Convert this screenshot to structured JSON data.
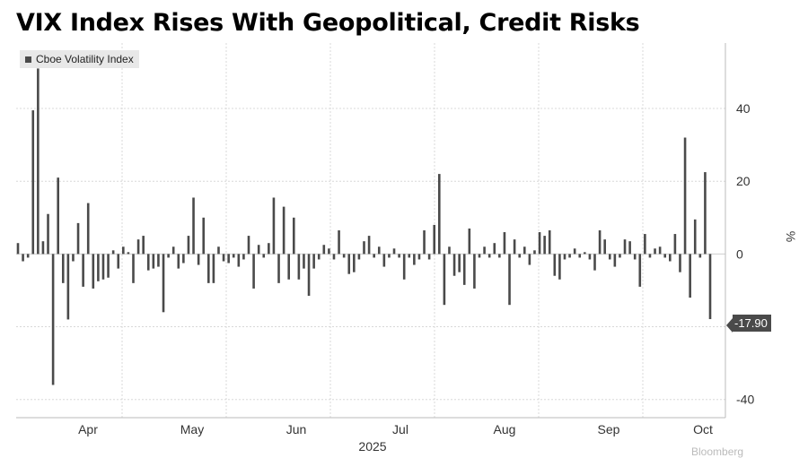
{
  "title": "VIX Index Rises With Geopolitical, Credit Risks",
  "legend": {
    "label": "Cboe Volatility Index"
  },
  "last_value_label": "-17.90",
  "footer_credit": "Bloomberg",
  "colors": {
    "bar": "#4a4a4a",
    "grid": "#d8d8d8",
    "zero_line": "#cfcfcf",
    "axis_text": "#333333"
  },
  "chart_data": {
    "type": "bar",
    "title": "VIX Index Rises With Geopolitical, Credit Risks",
    "ylabel": "%",
    "ylim": [
      -45,
      58
    ],
    "yticks": [
      40,
      20,
      0,
      -20,
      -40
    ],
    "x_axis_months": [
      "Apr",
      "May",
      "Jun",
      "Jul",
      "Aug",
      "Sep",
      "Oct"
    ],
    "x_axis_year": "2025",
    "grid": true,
    "legend_position": "top-left",
    "series": [
      {
        "name": "Cboe Volatility Index",
        "values": [
          3.0,
          -2.0,
          -1.0,
          39.5,
          51.0,
          3.5,
          11.0,
          -36.0,
          21.0,
          -8.0,
          -18.0,
          -2.0,
          8.5,
          -9.0,
          14.0,
          -9.5,
          -7.5,
          -7.0,
          -6.5,
          1.0,
          -4.0,
          2.0,
          0.5,
          -8.0,
          4.0,
          5.0,
          -4.5,
          -4.0,
          -3.5,
          -16.0,
          -1.0,
          2.0,
          -4.0,
          -2.5,
          5.0,
          15.5,
          -3.0,
          10.0,
          -8.0,
          -8.0,
          2.0,
          -2.0,
          -2.5,
          -1.0,
          -3.5,
          -1.5,
          5.0,
          -9.5,
          2.5,
          -1.0,
          3.0,
          15.5,
          -8.0,
          13.0,
          -7.0,
          10.0,
          -7.0,
          -4.0,
          -11.5,
          -4.0,
          -1.5,
          2.5,
          1.5,
          -1.5,
          6.5,
          -1.0,
          -5.5,
          -5.0,
          -1.5,
          3.5,
          5.0,
          -1.0,
          2.0,
          -3.5,
          -1.0,
          1.5,
          -1.0,
          -7.0,
          -1.0,
          -3.0,
          -1.5,
          6.5,
          -1.5,
          8.0,
          22.0,
          -14.0,
          2.0,
          -6.0,
          -5.0,
          -8.5,
          7.0,
          -9.5,
          -1.0,
          2.0,
          -1.0,
          3.0,
          -1.0,
          6.0,
          -14.0,
          4.0,
          -1.0,
          2.0,
          -3.0,
          1.0,
          6.0,
          5.0,
          6.5,
          -6.0,
          -7.0,
          -1.5,
          -1.0,
          1.5,
          -1.0,
          0.5,
          -1.5,
          -4.5,
          6.5,
          4.0,
          -1.5,
          -3.5,
          -1.0,
          4.0,
          3.5,
          -1.5,
          -9.0,
          5.5,
          -1.0,
          1.5,
          2.0,
          -1.0,
          -2.0,
          5.5,
          -5.0,
          32.0,
          -12.0,
          9.5,
          -1.0,
          22.5,
          -17.9
        ]
      }
    ]
  }
}
